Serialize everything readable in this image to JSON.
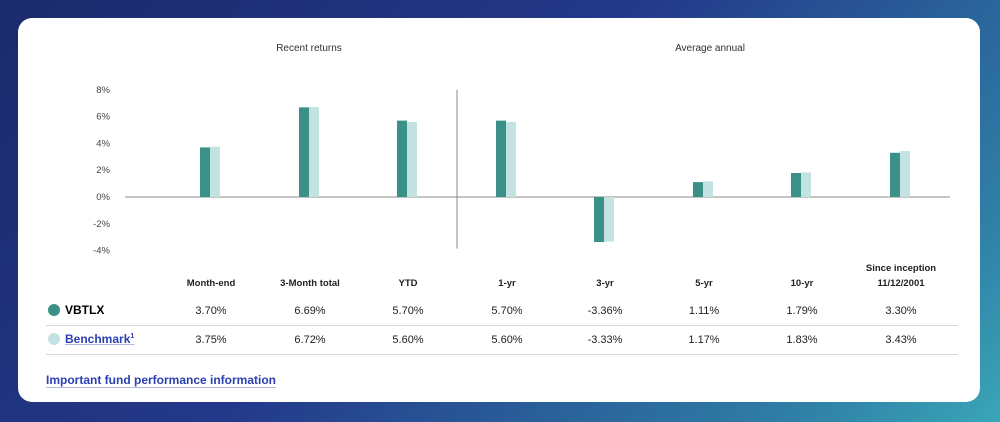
{
  "chart_data": {
    "type": "bar",
    "section_labels": [
      "Recent returns",
      "Average annual"
    ],
    "categories": [
      "Month-end",
      "3-Month total",
      "YTD",
      "1-yr",
      "3-yr",
      "5-yr",
      "10-yr",
      "Since inception 11/12/2001"
    ],
    "series": [
      {
        "name": "VBTLX",
        "values": [
          3.7,
          6.69,
          5.7,
          5.7,
          -3.36,
          1.11,
          1.79,
          3.3
        ],
        "color": "#3a9188"
      },
      {
        "name": "Benchmark",
        "values": [
          3.75,
          6.72,
          5.6,
          5.6,
          -3.33,
          1.17,
          1.83,
          3.43
        ],
        "color": "#c3e3e3"
      }
    ],
    "yticks": [
      "8%",
      "6%",
      "4%",
      "2%",
      "0%",
      "-2%",
      "-4%"
    ],
    "ylim": [
      -4,
      8
    ],
    "grid": false
  },
  "table": {
    "headers": [
      "Month-end",
      "3-Month total",
      "YTD",
      "1-yr",
      "3-yr",
      "5-yr",
      "10-yr",
      "Since inception",
      "11/12/2001"
    ],
    "rows": [
      {
        "label": "VBTLX",
        "values": [
          "3.70%",
          "6.69%",
          "5.70%",
          "5.70%",
          "-3.36%",
          "1.11%",
          "1.79%",
          "3.30%"
        ]
      },
      {
        "label": "Benchmark",
        "sup": "1",
        "values": [
          "3.75%",
          "6.72%",
          "5.60%",
          "5.60%",
          "-3.33%",
          "1.17%",
          "1.83%",
          "3.43%"
        ]
      }
    ]
  },
  "link": "Important fund performance information"
}
